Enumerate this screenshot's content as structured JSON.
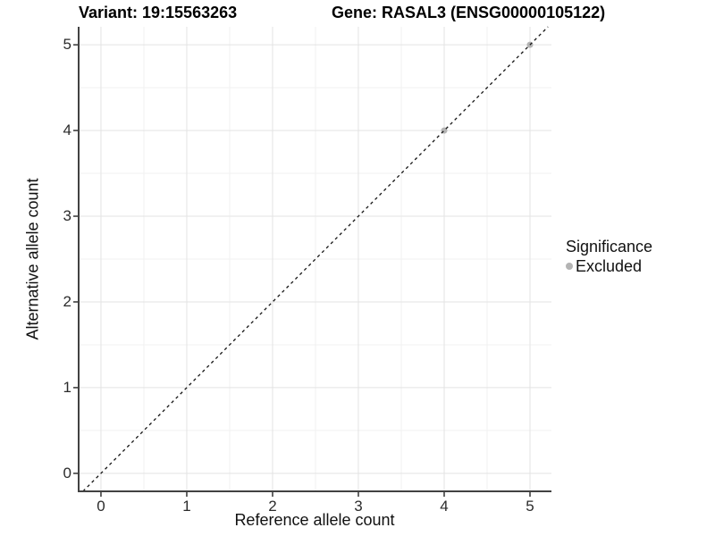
{
  "titles": {
    "variant": "Variant: 19:15563263",
    "gene": "Gene: RASAL3 (ENSG00000105122)"
  },
  "axes": {
    "x": {
      "label": "Reference allele count"
    },
    "y": {
      "label": "Alternative allele count"
    }
  },
  "legend": {
    "title": "Significance",
    "items": [
      {
        "label": "Excluded",
        "color": "#b4b4b4"
      }
    ]
  },
  "colors": {
    "background": "#ffffff",
    "grid_major": "#e3e3e3",
    "grid_minor": "#f1f1f1",
    "axis_line": "#424242",
    "tick_mark": "#333333",
    "dashed_line": "#141414",
    "point": "#b4b4b4"
  },
  "chart_data": {
    "type": "scatter",
    "title": "Variant: 19:15563263 — Gene: RASAL3 (ENSG00000105122)",
    "xlabel": "Reference allele count",
    "ylabel": "Alternative allele count",
    "xlim": [
      -0.26,
      5.25
    ],
    "ylim": [
      -0.21,
      5.21
    ],
    "x_ticks": [
      0,
      1,
      2,
      3,
      4,
      5
    ],
    "y_ticks": [
      0,
      1,
      2,
      3,
      4,
      5
    ],
    "x_minor": [
      0.5,
      1.5,
      2.5,
      3.5,
      4.5
    ],
    "y_minor": [
      0.5,
      1.5,
      2.5,
      3.5,
      4.5
    ],
    "grid": true,
    "legend_position": "right",
    "series": [
      {
        "name": "Excluded",
        "color": "#b4b4b4",
        "points": [
          [
            4,
            4
          ],
          [
            5,
            5
          ]
        ]
      }
    ],
    "reference_line": {
      "type": "abline",
      "slope": 1,
      "intercept": 0,
      "style": "dashed",
      "color": "#141414"
    }
  }
}
